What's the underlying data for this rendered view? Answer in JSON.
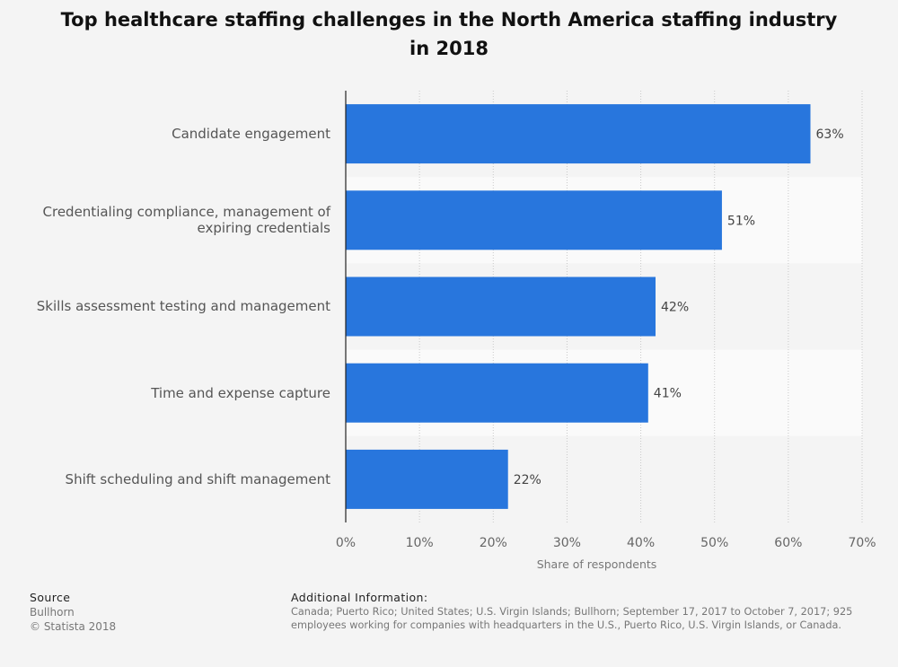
{
  "chart_data": {
    "type": "bar",
    "orientation": "horizontal",
    "title": "Top healthcare staffing challenges in the North America staffing industry in 2018",
    "categories": [
      "Candidate engagement",
      "Credentialing compliance, management of expiring credentials",
      "Skills assessment testing and management",
      "Time and expense capture",
      "Shift scheduling and shift management"
    ],
    "values": [
      63,
      51,
      42,
      41,
      22
    ],
    "value_labels": [
      "63%",
      "51%",
      "42%",
      "41%",
      "22%"
    ],
    "xlabel": "Share of respondents",
    "ylabel": "",
    "xlim": [
      0,
      70
    ],
    "ticks": [
      0,
      10,
      20,
      30,
      40,
      50,
      60,
      70
    ],
    "tick_labels": [
      "0%",
      "10%",
      "20%",
      "30%",
      "40%",
      "50%",
      "60%",
      "70%"
    ],
    "bar_color": "#2876dd",
    "grid": true
  },
  "footer": {
    "source_heading": "Source",
    "source_lines": [
      "Bullhorn",
      "© Statista 2018"
    ],
    "info_heading": "Additional Information:",
    "info_lines": [
      "Canada; Puerto Rico; United States; U.S. Virgin Islands; Bullhorn; September 17, 2017 to October 7, 2017; 925",
      "employees working for companies with headquarters in the U.S., Puerto Rico, U.S. Virgin Islands, or Canada."
    ]
  }
}
